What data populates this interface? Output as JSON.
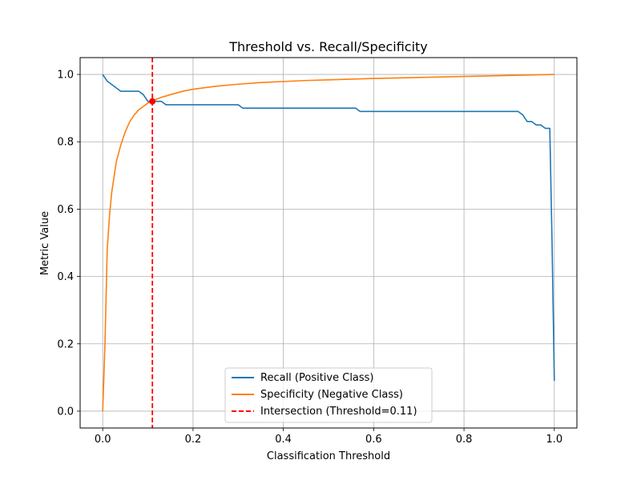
{
  "chart_data": {
    "type": "line",
    "title": "Threshold vs. Recall/Specificity",
    "xlabel": "Classification Threshold",
    "ylabel": "Metric Value",
    "xlim": [
      -0.05,
      1.05
    ],
    "ylim": [
      -0.05,
      1.05
    ],
    "xticks": [
      0.0,
      0.2,
      0.4,
      0.6,
      0.8,
      1.0
    ],
    "xtick_labels": [
      "0.0",
      "0.2",
      "0.4",
      "0.6",
      "0.8",
      "1.0"
    ],
    "yticks": [
      0.0,
      0.2,
      0.4,
      0.6,
      0.8,
      1.0
    ],
    "ytick_labels": [
      "0.0",
      "0.2",
      "0.4",
      "0.6",
      "0.8",
      "1.0"
    ],
    "grid": true,
    "legend_position": "bottom-center",
    "series": [
      {
        "name": "Recall (Positive Class)",
        "color": "#1f77b4",
        "x": [
          0.0,
          0.01,
          0.02,
          0.03,
          0.04,
          0.05,
          0.06,
          0.07,
          0.08,
          0.09,
          0.1,
          0.11,
          0.12,
          0.13,
          0.14,
          0.15,
          0.2,
          0.25,
          0.3,
          0.31,
          0.35,
          0.4,
          0.45,
          0.5,
          0.55,
          0.56,
          0.57,
          0.6,
          0.65,
          0.7,
          0.75,
          0.8,
          0.85,
          0.9,
          0.92,
          0.93,
          0.94,
          0.95,
          0.96,
          0.97,
          0.98,
          0.99,
          0.995,
          1.0
        ],
        "y": [
          1.0,
          0.98,
          0.97,
          0.96,
          0.95,
          0.95,
          0.95,
          0.95,
          0.95,
          0.94,
          0.92,
          0.92,
          0.92,
          0.92,
          0.91,
          0.91,
          0.91,
          0.91,
          0.91,
          0.9,
          0.9,
          0.9,
          0.9,
          0.9,
          0.9,
          0.9,
          0.89,
          0.89,
          0.89,
          0.89,
          0.89,
          0.89,
          0.89,
          0.89,
          0.89,
          0.88,
          0.86,
          0.86,
          0.85,
          0.85,
          0.84,
          0.84,
          0.5,
          0.09
        ]
      },
      {
        "name": "Specificity (Negative Class)",
        "color": "#ff7f0e",
        "x": [
          0.0,
          0.005,
          0.01,
          0.015,
          0.02,
          0.03,
          0.04,
          0.05,
          0.06,
          0.07,
          0.08,
          0.09,
          0.1,
          0.11,
          0.12,
          0.13,
          0.15,
          0.18,
          0.2,
          0.25,
          0.3,
          0.35,
          0.4,
          0.45,
          0.5,
          0.6,
          0.7,
          0.8,
          0.9,
          1.0
        ],
        "y": [
          0.0,
          0.2,
          0.48,
          0.58,
          0.65,
          0.74,
          0.79,
          0.83,
          0.86,
          0.88,
          0.895,
          0.905,
          0.915,
          0.921,
          0.927,
          0.932,
          0.94,
          0.951,
          0.956,
          0.965,
          0.971,
          0.976,
          0.979,
          0.982,
          0.984,
          0.988,
          0.991,
          0.994,
          0.997,
          1.0
        ]
      },
      {
        "name": "Intersection (Threshold=0.11)",
        "color": "#ff0000",
        "x_value": 0.11
      }
    ],
    "intersection_point": {
      "x": 0.11,
      "y": 0.92,
      "color": "#ff0000"
    }
  }
}
